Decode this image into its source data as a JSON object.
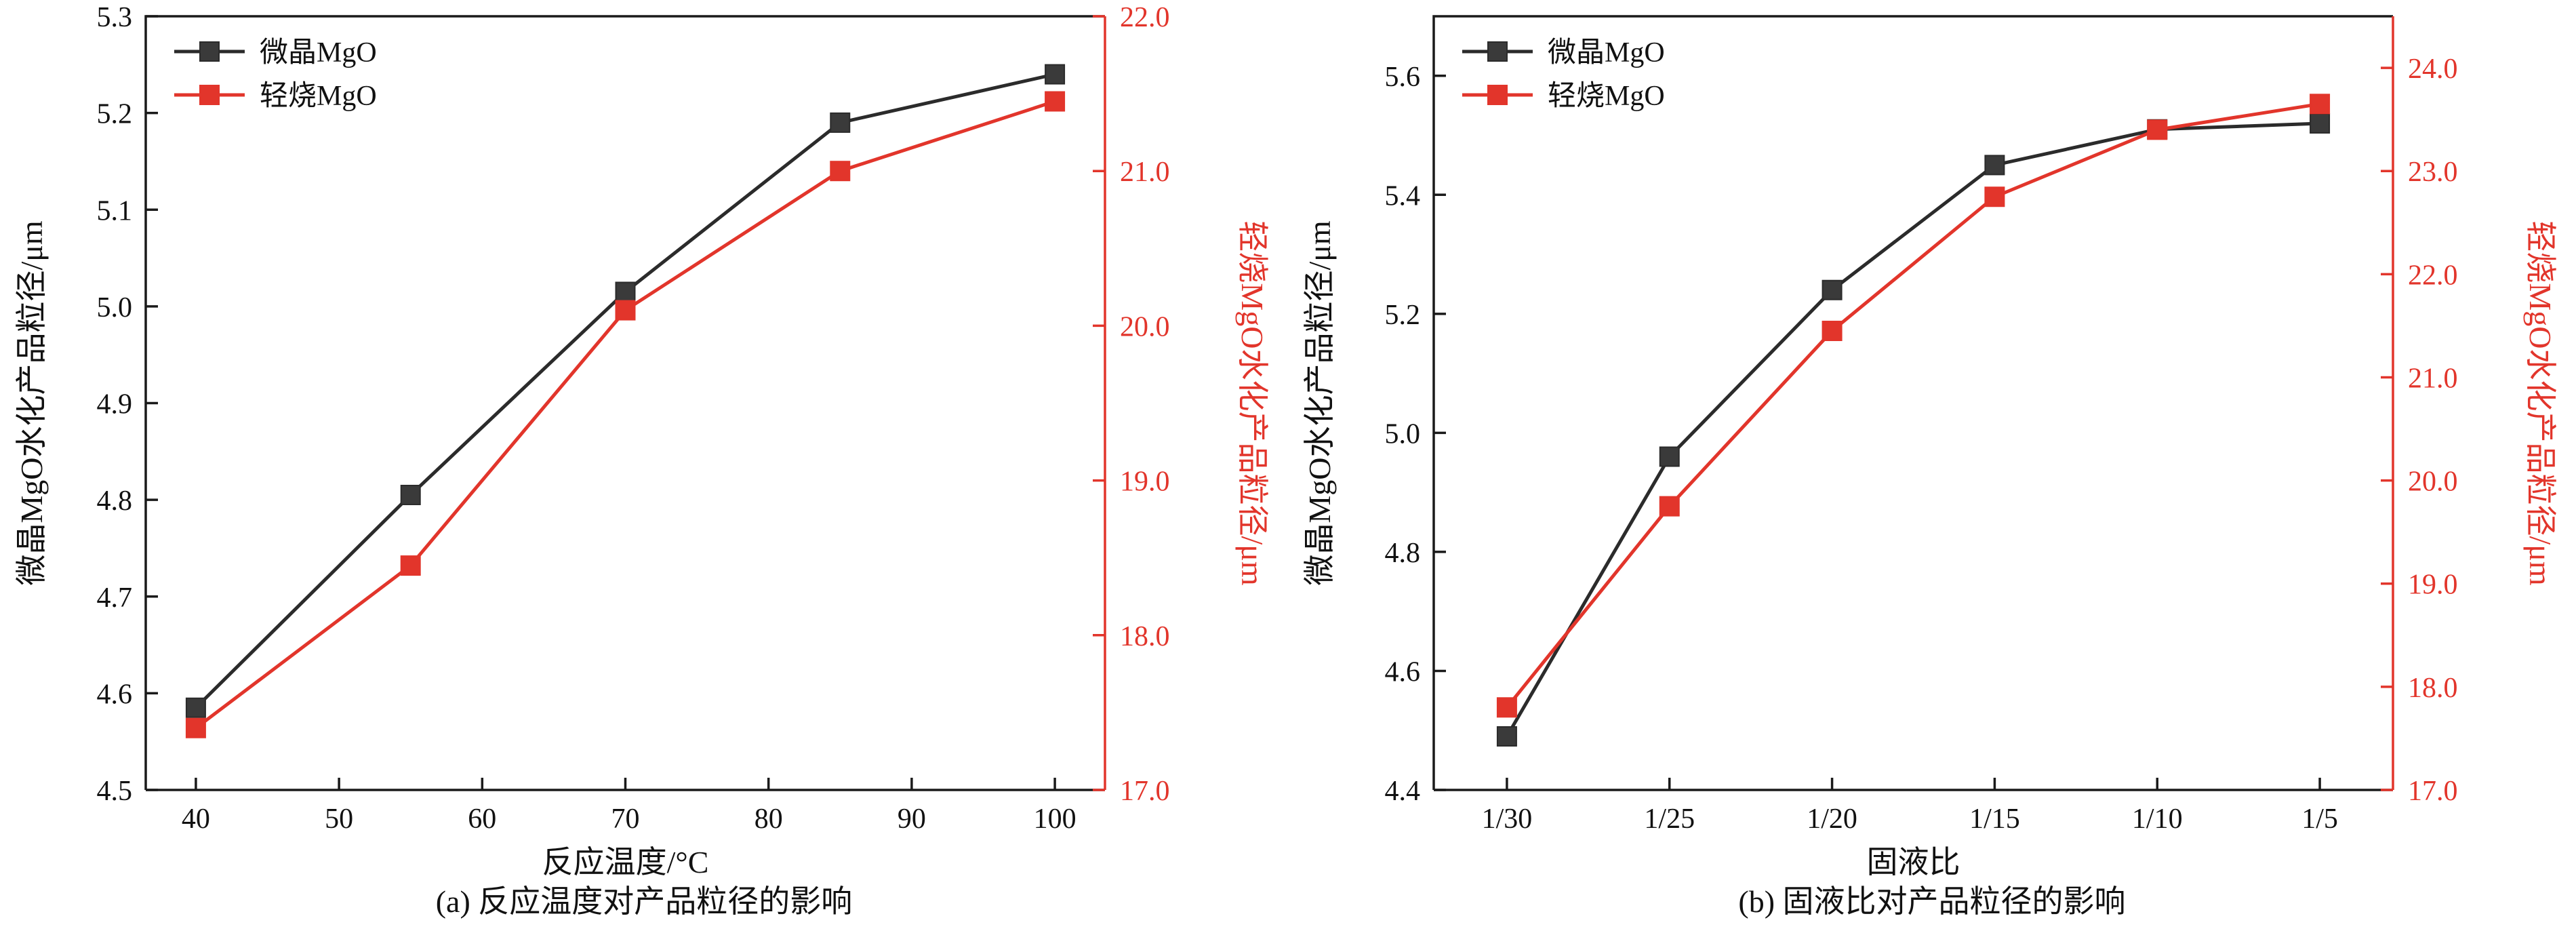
{
  "figure": {
    "background": "#ffffff",
    "frame_color": "#1a1a1a",
    "accent_red": "#e2352b"
  },
  "chart_data": [
    {
      "type": "line",
      "caption": "(a) 反应温度对产品粒径的影响",
      "xlabel": "反应温度/°C",
      "xlim": [
        36.5,
        103.5
      ],
      "x_ticks": [
        40,
        50,
        60,
        70,
        80,
        90,
        100
      ],
      "x_tick_labels": [
        "40",
        "50",
        "60",
        "70",
        "80",
        "90",
        "100"
      ],
      "grid": false,
      "legend_position": "top-left",
      "left_axis": {
        "label": "微晶MgO水化产品粒径/μm",
        "color": "#1a1a1a",
        "lim": [
          4.5,
          5.3
        ],
        "ticks": [
          4.5,
          4.6,
          4.7,
          4.8,
          4.9,
          5.0,
          5.1,
          5.2,
          5.3
        ],
        "tick_labels": [
          "4.5",
          "4.6",
          "4.7",
          "4.8",
          "4.9",
          "5.0",
          "5.1",
          "5.2",
          "5.3"
        ]
      },
      "right_axis": {
        "label": "轻烧MgO水化产品粒径/μm",
        "color": "#e2352b",
        "lim": [
          17.0,
          22.0
        ],
        "ticks": [
          17,
          18,
          19,
          20,
          21,
          22
        ],
        "tick_labels": [
          "17.0",
          "18.0",
          "19.0",
          "20.0",
          "21.0",
          "22.0"
        ]
      },
      "series": [
        {
          "name": "微晶MgO",
          "axis": "left",
          "marker": "square",
          "color": "#3a3a3a",
          "line_color": "#2b2b2b",
          "x": [
            40,
            55,
            70,
            85,
            100
          ],
          "values": [
            4.585,
            4.805,
            5.015,
            5.19,
            5.24
          ]
        },
        {
          "name": "轻烧MgO",
          "axis": "right",
          "marker": "square",
          "color": "#e2352b",
          "line_color": "#e2352b",
          "x": [
            40,
            55,
            70,
            85,
            100
          ],
          "values": [
            17.4,
            18.45,
            20.1,
            21.0,
            21.45
          ]
        }
      ]
    },
    {
      "type": "line",
      "caption": "(b) 固液比对产品粒径的影响",
      "xlabel": "固液比",
      "xlim": [
        -0.45,
        5.45
      ],
      "x_ticks": [
        0,
        1,
        2,
        3,
        4,
        5
      ],
      "x_tick_labels": [
        "1/30",
        "1/25",
        "1/20",
        "1/15",
        "1/10",
        "1/5"
      ],
      "grid": false,
      "legend_position": "top-left",
      "left_axis": {
        "label": "微晶MgO水化产品粒径/μm",
        "color": "#1a1a1a",
        "lim": [
          4.4,
          5.7
        ],
        "ticks": [
          4.4,
          4.6,
          4.8,
          5.0,
          5.2,
          5.4,
          5.6
        ],
        "tick_labels": [
          "4.4",
          "4.6",
          "4.8",
          "5.0",
          "5.2",
          "5.4",
          "5.6"
        ]
      },
      "right_axis": {
        "label": "轻烧MgO水化产品粒径/μm",
        "color": "#e2352b",
        "lim": [
          17.0,
          24.5
        ],
        "ticks": [
          17,
          18,
          19,
          20,
          21,
          22,
          23,
          24
        ],
        "tick_labels": [
          "17.0",
          "18.0",
          "19.0",
          "20.0",
          "21.0",
          "22.0",
          "23.0",
          "24.0"
        ]
      },
      "series": [
        {
          "name": "微晶MgO",
          "axis": "left",
          "marker": "square",
          "color": "#3a3a3a",
          "line_color": "#2b2b2b",
          "x": [
            0,
            1,
            2,
            3,
            4,
            5
          ],
          "values": [
            4.49,
            4.96,
            5.24,
            5.45,
            5.51,
            5.52
          ]
        },
        {
          "name": "轻烧MgO",
          "axis": "right",
          "marker": "square",
          "color": "#e2352b",
          "line_color": "#e2352b",
          "x": [
            0,
            1,
            2,
            3,
            4,
            5
          ],
          "values": [
            17.8,
            19.75,
            21.45,
            22.75,
            23.4,
            23.65
          ]
        }
      ]
    }
  ]
}
